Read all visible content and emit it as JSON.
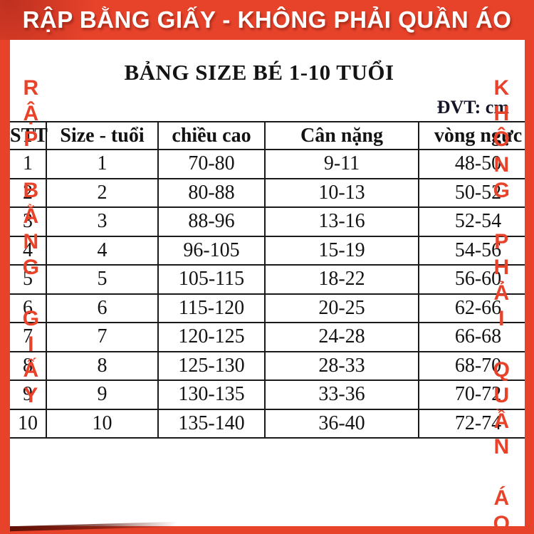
{
  "banner": {
    "text": "RẬP BẰNG GIẤY - KHÔNG PHẢI QUẦN ÁO"
  },
  "watermark": {
    "left": "RẬP BẰNG GIẤY",
    "right": "KHÔNG PHẢI QUẦN ÁO"
  },
  "title": "BẢNG SIZE BÉ 1-10 TUỔI",
  "unit_label": "ĐVT: cm",
  "table": {
    "headers": [
      "STT",
      "Size - tuổi",
      "chiều cao",
      "Cân nặng",
      "vòng ngực"
    ],
    "rows": [
      [
        "1",
        "1",
        "70-80",
        "9-11",
        "48-50"
      ],
      [
        "2",
        "2",
        "80-88",
        "10-13",
        "50-52"
      ],
      [
        "3",
        "3",
        "88-96",
        "13-16",
        "52-54"
      ],
      [
        "4",
        "4",
        "96-105",
        "15-19",
        "54-56"
      ],
      [
        "5",
        "5",
        "105-115",
        "18-22",
        "56-60"
      ],
      [
        "6",
        "6",
        "115-120",
        "20-25",
        "62-66"
      ],
      [
        "7",
        "7",
        "120-125",
        "24-28",
        "66-68"
      ],
      [
        "8",
        "8",
        "125-130",
        "28-33",
        "68-70"
      ],
      [
        "9",
        "9",
        "130-135",
        "33-36",
        "70-72"
      ],
      [
        "10",
        "10",
        "135-140",
        "36-40",
        "72-74"
      ]
    ]
  },
  "colors": {
    "accent_red": "#e7432b",
    "watermark_red": "#e8432a",
    "table_border": "#1a1a1a",
    "banner_text": "#ffffff",
    "body_text": "#131313"
  }
}
